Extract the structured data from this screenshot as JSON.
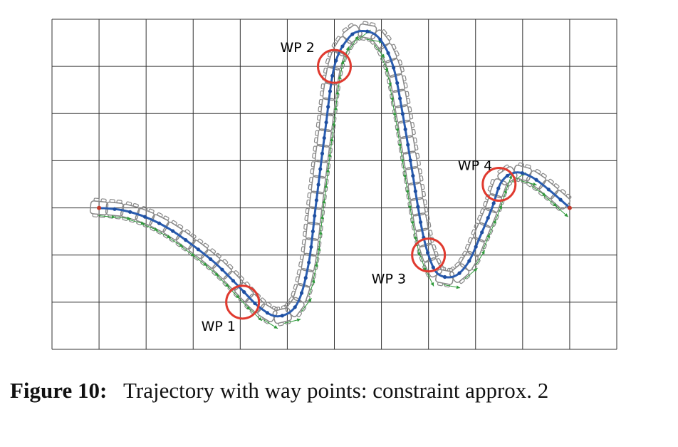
{
  "figure": {
    "grid": {
      "columns": 12,
      "rows": 7
    },
    "waypoints": [
      {
        "label": "WP 1",
        "x": 4.05,
        "y": 1.0
      },
      {
        "label": "WP 2",
        "x": 6.0,
        "y": 6.0
      },
      {
        "label": "WP 3",
        "x": 8.0,
        "y": 2.0
      },
      {
        "label": "WP 4",
        "x": 9.5,
        "y": 3.5
      }
    ],
    "trajectory": {
      "start": [
        1.0,
        3.0
      ],
      "end": [
        11.0,
        3.0
      ],
      "path": [
        [
          1.0,
          3.0
        ],
        [
          1.5,
          2.95
        ],
        [
          2.0,
          2.8
        ],
        [
          2.5,
          2.55
        ],
        [
          3.0,
          2.2
        ],
        [
          3.5,
          1.8
        ],
        [
          4.0,
          1.3
        ],
        [
          4.4,
          0.9
        ],
        [
          4.8,
          0.7
        ],
        [
          5.2,
          0.95
        ],
        [
          5.45,
          1.8
        ],
        [
          5.6,
          3.0
        ],
        [
          5.8,
          4.6
        ],
        [
          6.0,
          6.0
        ],
        [
          6.3,
          6.6
        ],
        [
          6.6,
          6.75
        ],
        [
          6.95,
          6.6
        ],
        [
          7.25,
          6.0
        ],
        [
          7.45,
          5.0
        ],
        [
          7.65,
          3.8
        ],
        [
          7.85,
          2.6
        ],
        [
          8.0,
          2.0
        ],
        [
          8.2,
          1.6
        ],
        [
          8.55,
          1.55
        ],
        [
          8.85,
          1.85
        ],
        [
          9.1,
          2.4
        ],
        [
          9.35,
          3.0
        ],
        [
          9.55,
          3.55
        ],
        [
          9.85,
          3.75
        ],
        [
          10.2,
          3.65
        ],
        [
          10.6,
          3.35
        ],
        [
          11.0,
          3.0
        ]
      ]
    }
  },
  "caption": {
    "lead": "Figure 10:",
    "text": "Trajectory with way points: constraint approx. 2"
  }
}
